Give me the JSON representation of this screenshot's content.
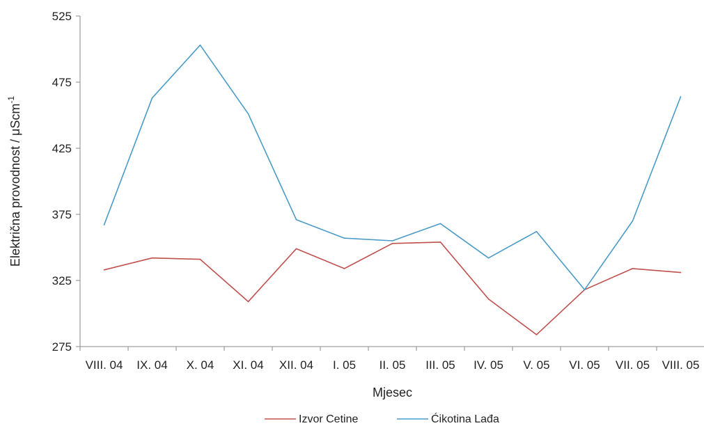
{
  "chart_data": {
    "type": "line",
    "title": "",
    "xlabel": "Mjesec",
    "ylabel": "Električna provodnost / μScm",
    "ylabel_superscript": "-1",
    "categories": [
      "VIII. 04",
      "IX. 04",
      "X. 04",
      "XI. 04",
      "XII. 04",
      "I. 05",
      "II. 05",
      "III. 05",
      "IV. 05",
      "V. 05",
      "VI. 05",
      "VII. 05",
      "VIII. 05"
    ],
    "ylim": [
      275,
      525
    ],
    "yticks": [
      275,
      325,
      375,
      425,
      475,
      525
    ],
    "grid": false,
    "legend_position": "bottom",
    "series": [
      {
        "name": "Izvor Cetine",
        "color": "#c0504d",
        "values": [
          333,
          342,
          341,
          309,
          349,
          334,
          353,
          354,
          311,
          284,
          318,
          334,
          331
        ]
      },
      {
        "name": "Ćikotina Lađa",
        "color": "#4a9bc7",
        "values": [
          367,
          463,
          503,
          451,
          371,
          357,
          355,
          368,
          342,
          362,
          318,
          370,
          464
        ]
      }
    ]
  }
}
